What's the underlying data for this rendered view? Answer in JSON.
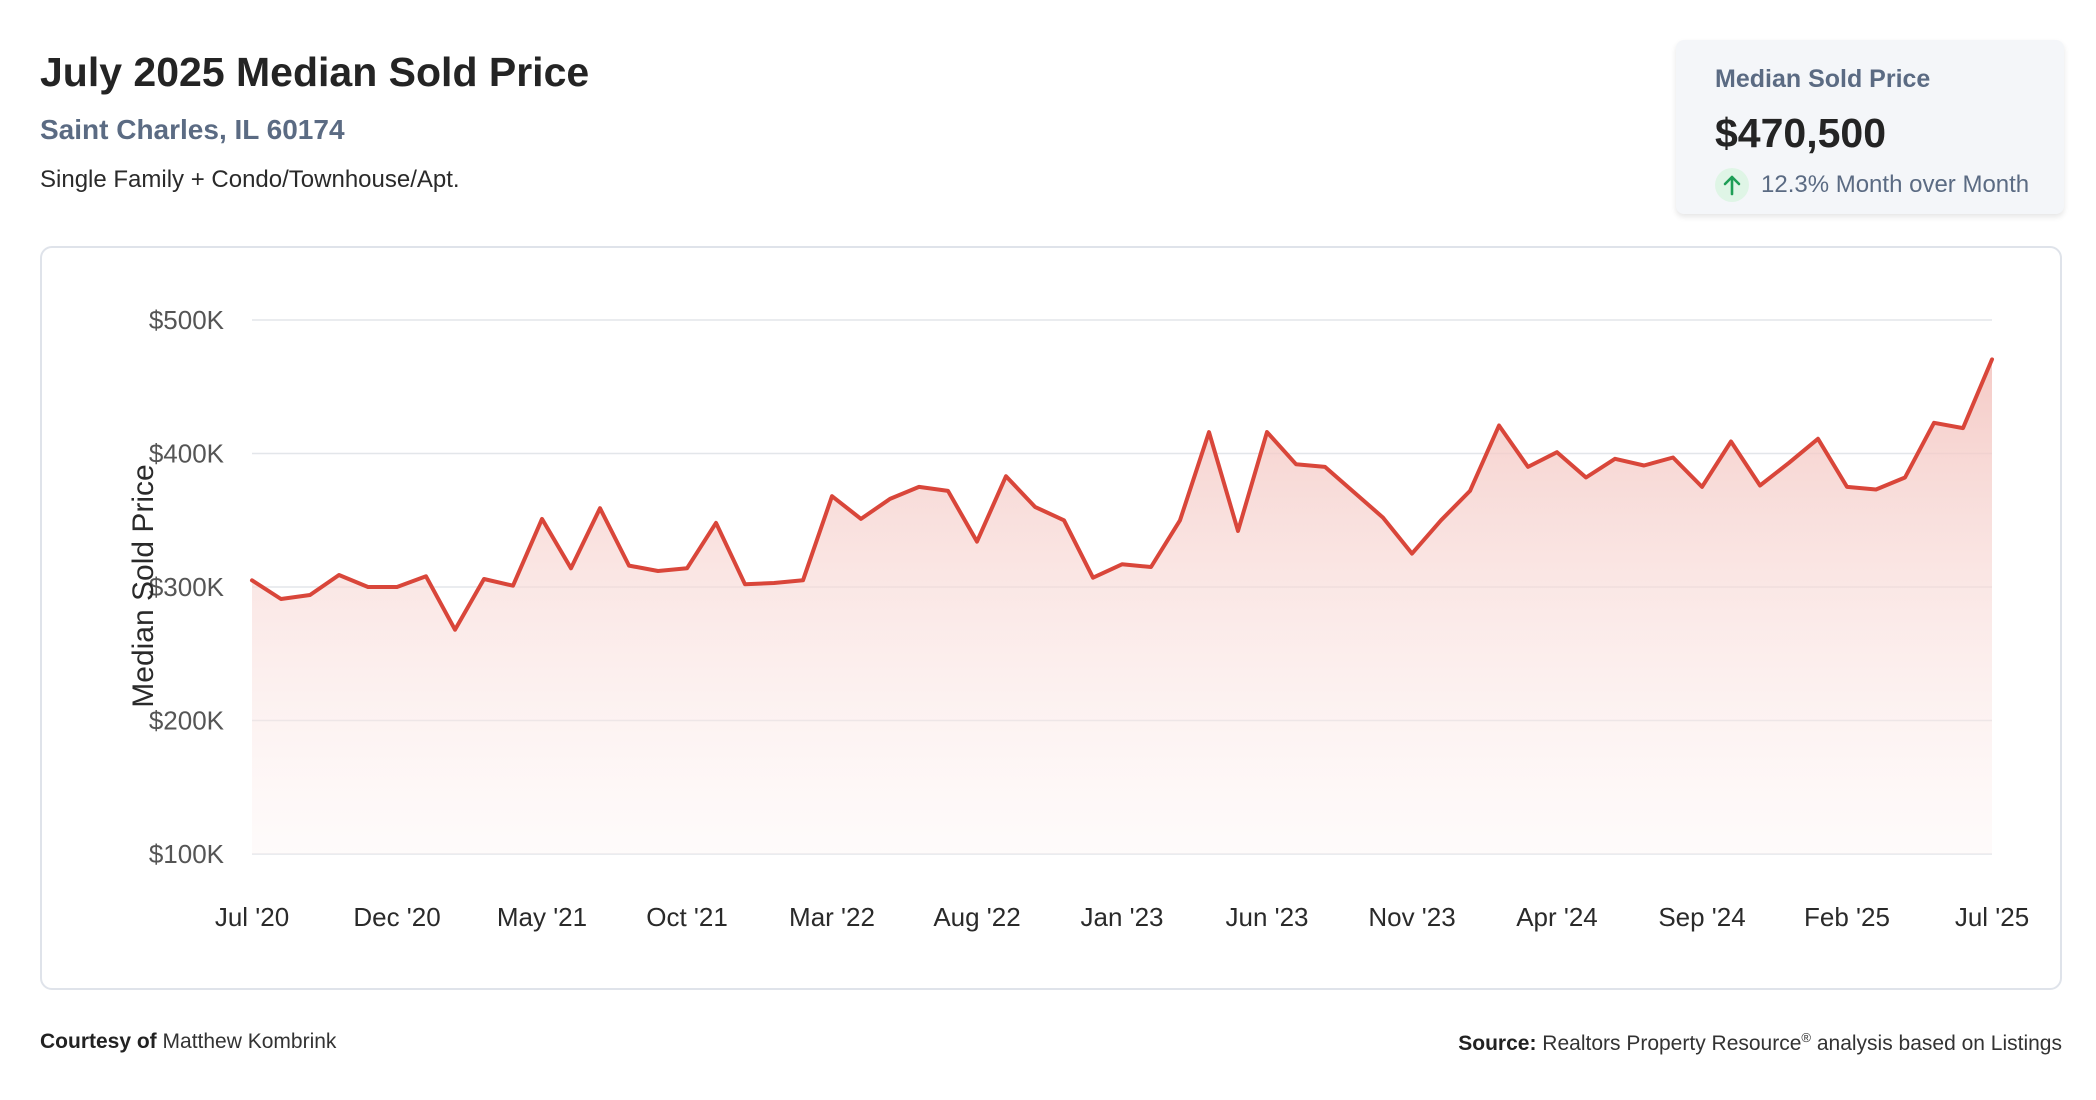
{
  "header": {
    "title": "July 2025 Median Sold Price",
    "location": "Saint Charles, IL 60174",
    "property_type": "Single Family + Condo/Townhouse/Apt."
  },
  "kpi": {
    "label": "Median Sold Price",
    "value": "$470,500",
    "change": "12.3% Month over Month",
    "direction_icon": "up-arrow-icon",
    "icon_color": "#1e9e56"
  },
  "footer": {
    "courtesy_label": "Courtesy of",
    "courtesy_name": "Matthew Kombrink",
    "source_label": "Source:",
    "source_text": "Realtors Property Resource",
    "source_mark": "®",
    "source_suffix": " analysis based on Listings"
  },
  "colors": {
    "line": "#d9463a",
    "area_top": "#f5c9c4",
    "gridline": "#e3e6ea"
  },
  "chart_data": {
    "type": "area",
    "ylabel": "Median Sold Price",
    "xlabel": "",
    "ylim": [
      100000,
      500000
    ],
    "y_ticks": [
      {
        "value": 500000,
        "label": "$500K"
      },
      {
        "value": 400000,
        "label": "$400K"
      },
      {
        "value": 300000,
        "label": "$300K"
      },
      {
        "value": 200000,
        "label": "$200K"
      },
      {
        "value": 100000,
        "label": "$100K"
      }
    ],
    "x_ticks": [
      {
        "index": 0,
        "label": "Jul '20"
      },
      {
        "index": 5,
        "label": "Dec '20"
      },
      {
        "index": 10,
        "label": "May '21"
      },
      {
        "index": 15,
        "label": "Oct '21"
      },
      {
        "index": 20,
        "label": "Mar '22"
      },
      {
        "index": 25,
        "label": "Aug '22"
      },
      {
        "index": 30,
        "label": "Jan '23"
      },
      {
        "index": 35,
        "label": "Jun '23"
      },
      {
        "index": 40,
        "label": "Nov '23"
      },
      {
        "index": 45,
        "label": "Apr '24"
      },
      {
        "index": 50,
        "label": "Sep '24"
      },
      {
        "index": 55,
        "label": "Feb '25"
      },
      {
        "index": 60,
        "label": "Jul '25"
      }
    ],
    "grid": true,
    "legend": "none",
    "series": [
      {
        "values": [
          305000,
          291000,
          294000,
          309000,
          300000,
          300000,
          308000,
          268000,
          306000,
          301000,
          351000,
          314000,
          359000,
          316000,
          312000,
          314000,
          348000,
          302000,
          303000,
          305000,
          368000,
          351000,
          366000,
          375000,
          372000,
          334000,
          383000,
          360000,
          350000,
          307000,
          317000,
          315000,
          350000,
          416000,
          342000,
          416000,
          392000,
          390000,
          371000,
          352000,
          325000,
          350000,
          372000,
          421000,
          390000,
          401000,
          382000,
          396000,
          391000,
          397000,
          375000,
          409000,
          376000,
          393000,
          411000,
          375000,
          373000,
          382000,
          423000,
          419000,
          470500
        ]
      }
    ]
  }
}
